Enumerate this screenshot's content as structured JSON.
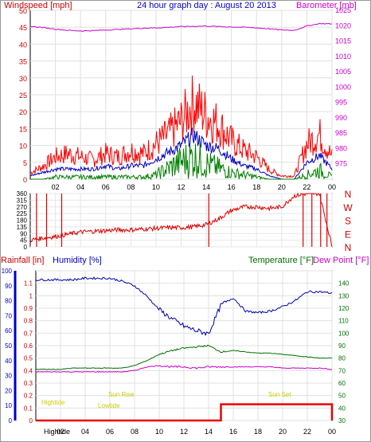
{
  "header": {
    "left_label": "Windspeed [mph]",
    "title": "24 hour graph day : August 20 2013",
    "right_label": "Barometer [mb]"
  },
  "hours": [
    "02",
    "04",
    "06",
    "08",
    "10",
    "12",
    "14",
    "16",
    "18",
    "20",
    "22",
    "00"
  ],
  "direction_letters": [
    "N",
    "W",
    "S",
    "E",
    "N"
  ],
  "bottom": {
    "left_label_1": "Rainfall [in]",
    "left_label_2": "Humidity [%]",
    "right_label_1": "Temperature [°F]",
    "right_label_2": "Dew Point [°F]",
    "tide_labels": [
      "Hightide",
      "Sun Rise",
      "Lowtide",
      "Sun Set"
    ],
    "footer_label": "Hightide"
  },
  "colors": {
    "wind": "#ff0000",
    "avg_wind": "#0000c0",
    "gust": "#008000",
    "barometer": "#cc00cc",
    "direction": "#dd0000",
    "humidity": "#0000aa",
    "temperature": "#007000",
    "dewpoint": "#cc00cc",
    "rain": "#ee0000",
    "tide_text": "#cccc00",
    "axis_blue": "#0000cc"
  },
  "chart_data": [
    {
      "type": "line",
      "title": "24 hour graph day : August 20 2013",
      "xlabel": "",
      "ylabel": "Windspeed [mph]",
      "y2label": "Barometer [mb]",
      "ylim": [
        0,
        50
      ],
      "y2lim": [
        970,
        1025
      ],
      "x_hours": [
        0,
        1,
        2,
        3,
        4,
        5,
        6,
        7,
        8,
        9,
        10,
        11,
        12,
        13,
        14,
        15,
        16,
        17,
        18,
        19,
        20,
        21,
        22,
        23,
        24
      ],
      "series": [
        {
          "name": "Windspeed",
          "axis": "left",
          "values": [
            2,
            4,
            7,
            8,
            7,
            6,
            8,
            7,
            9,
            8,
            11,
            14,
            18,
            24,
            20,
            17,
            12,
            9,
            7,
            3,
            1,
            1,
            11,
            14,
            7
          ]
        },
        {
          "name": "Average",
          "axis": "left",
          "values": [
            1,
            2,
            3,
            3,
            3,
            3,
            4,
            3,
            4,
            4,
            6,
            8,
            10,
            13,
            10,
            9,
            6,
            4,
            3,
            1,
            0,
            0,
            5,
            7,
            3
          ]
        },
        {
          "name": "Gust",
          "axis": "left",
          "values": [
            0,
            0,
            1,
            1,
            1,
            1,
            1,
            1,
            1,
            1,
            2,
            5,
            8,
            10,
            7,
            5,
            3,
            2,
            1,
            0,
            0,
            0,
            2,
            4,
            1
          ]
        },
        {
          "name": "Barometer",
          "axis": "right",
          "values": [
            1019.8,
            1019.4,
            1018.9,
            1018.5,
            1018.3,
            1018.4,
            1018.6,
            1018.8,
            1019.0,
            1019.2,
            1019.3,
            1019.5,
            1019.7,
            1019.8,
            1019.9,
            1019.7,
            1019.6,
            1019.5,
            1019.3,
            1019.0,
            1018.6,
            1018.5,
            1019.9,
            1020.7,
            1020.6
          ]
        }
      ]
    },
    {
      "type": "scatter",
      "title": "",
      "ylabel": "",
      "ylim": [
        0,
        360
      ],
      "y_ticks": [
        0,
        45,
        90,
        135,
        180,
        225,
        270,
        315,
        360
      ],
      "x_hours": [
        0,
        1,
        2,
        3,
        4,
        5,
        6,
        7,
        8,
        9,
        10,
        11,
        12,
        13,
        14,
        15,
        16,
        17,
        18,
        19,
        20,
        21,
        22,
        23,
        24
      ],
      "values": [
        45,
        60,
        70,
        85,
        100,
        105,
        110,
        115,
        115,
        120,
        125,
        130,
        130,
        135,
        150,
        190,
        245,
        270,
        270,
        260,
        270,
        345,
        360,
        360,
        5
      ]
    },
    {
      "type": "line",
      "title": "",
      "ylim_rain": [
        0,
        1.2
      ],
      "ylim_humidity": [
        0,
        100
      ],
      "ylim_temperature": [
        30,
        150
      ],
      "x_hours": [
        0,
        1,
        2,
        3,
        4,
        5,
        6,
        7,
        8,
        9,
        10,
        11,
        12,
        13,
        14,
        15,
        16,
        17,
        18,
        19,
        20,
        21,
        22,
        23,
        24
      ],
      "series": [
        {
          "name": "Humidity",
          "axis": "humidity",
          "values": [
            94,
            94,
            94,
            94,
            95,
            95,
            95,
            93,
            90,
            83,
            74,
            68,
            63,
            60,
            58,
            77,
            82,
            73,
            72,
            73,
            76,
            80,
            86,
            86,
            85
          ]
        },
        {
          "name": "Temperature",
          "axis": "temperature",
          "values": [
            71,
            71,
            71,
            72,
            72,
            72,
            72,
            72,
            74,
            78,
            83,
            86,
            88,
            89,
            90,
            85,
            86,
            85,
            84,
            84,
            83,
            82,
            81,
            80,
            80
          ]
        },
        {
          "name": "Dew Point",
          "axis": "temperature",
          "values": [
            69,
            69,
            69,
            69,
            69,
            69,
            69,
            69,
            70,
            73,
            74,
            73,
            73,
            72,
            73,
            73,
            73,
            73,
            73,
            73,
            72,
            72,
            72,
            72,
            71
          ]
        },
        {
          "name": "Rainfall",
          "axis": "rain",
          "values": [
            0,
            0,
            0,
            0,
            0,
            0,
            0,
            0,
            0,
            0,
            0,
            0,
            0,
            0,
            0,
            0.13,
            0.13,
            0.13,
            0.13,
            0.13,
            0.13,
            0.13,
            0.13,
            0.13,
            0.13
          ]
        }
      ],
      "left_ticks_rain": [
        "0",
        "0.1",
        "0.2",
        "0.3",
        "0.4",
        "0.5",
        "0.6",
        "0.7",
        "0.8",
        "0.9",
        "1",
        "1.1"
      ],
      "left_ticks_humidity": [
        "0",
        "10",
        "20",
        "30",
        "40",
        "50",
        "60",
        "70",
        "80",
        "90",
        "100"
      ],
      "right_ticks": [
        "30",
        "40",
        "50",
        "60",
        "70",
        "80",
        "90",
        "100",
        "110",
        "120",
        "130",
        "140"
      ]
    }
  ]
}
